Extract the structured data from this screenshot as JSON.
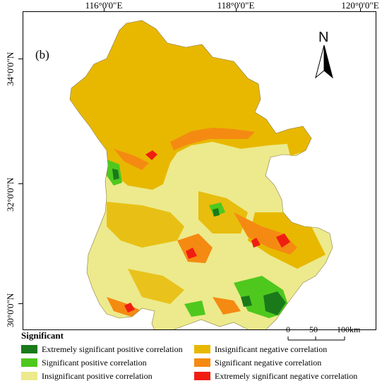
{
  "panel_label": "(b)",
  "north_label": "N",
  "longitude_ticks": [
    "116°0'0\"E",
    "118°0'0\"E",
    "120°0'0\"E"
  ],
  "latitude_ticks": [
    "34°0'0\"N",
    "32°0'0\"N",
    "30°0'0\"N"
  ],
  "scale_bar": {
    "labels": [
      "0",
      "50",
      "100km"
    ]
  },
  "legend": {
    "title": "Significant",
    "items": [
      {
        "label": "Extremely significant positive correlation",
        "color": "#1a7a1a"
      },
      {
        "label": "Insignificant negative correlation",
        "color": "#e8b800"
      },
      {
        "label": "Significant positive correlation",
        "color": "#4fc81e"
      },
      {
        "label": "Significant negative correlation",
        "color": "#f58a12"
      },
      {
        "label": "Insignificant positive correlation",
        "color": "#ecea8c"
      },
      {
        "label": "Extremely significant negative correlation",
        "color": "#f01e12"
      }
    ]
  }
}
